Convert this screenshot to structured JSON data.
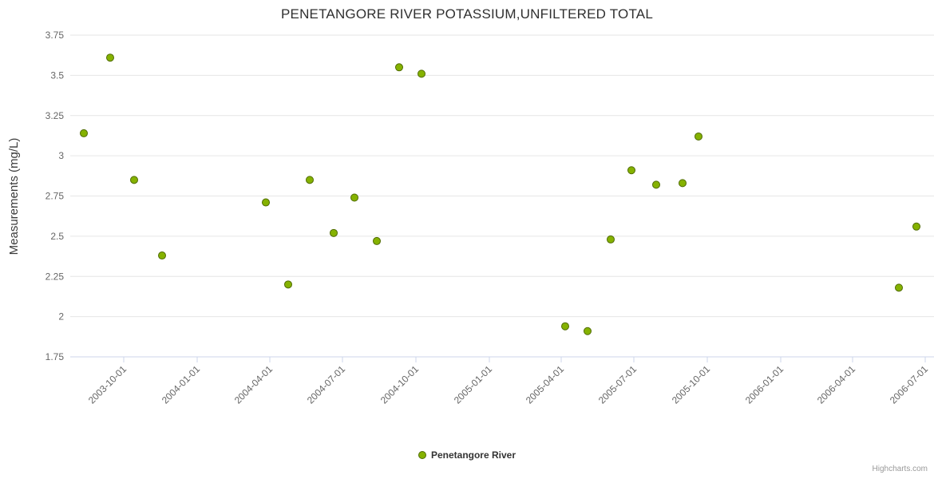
{
  "title": "PENETANGORE RIVER POTASSIUM,UNFILTERED TOTAL",
  "credits": "Highcharts.com",
  "legend": {
    "items": [
      {
        "label": "Penetangore River",
        "color": "#85b200",
        "border": "#4f6b00"
      }
    ]
  },
  "colors": {
    "grid": "#e6e6e6",
    "axis_line": "#ccd6eb",
    "tick": "#ccd6eb",
    "axis_label": "#666666",
    "title": "#303030",
    "point_fill": "#85b200",
    "point_stroke": "#4f6b00"
  },
  "chart_data": {
    "type": "scatter",
    "title": "PENETANGORE RIVER POTASSIUM,UNFILTERED TOTAL",
    "xlabel": "",
    "ylabel": "Measurements (mg/L)",
    "ylim": [
      1.75,
      3.75
    ],
    "y_ticks": [
      "1.75",
      "2",
      "2.25",
      "2.5",
      "2.75",
      "3",
      "3.25",
      "3.5",
      "3.75"
    ],
    "x_ticks": [
      "2003-10-01",
      "2004-01-01",
      "2004-04-01",
      "2004-07-01",
      "2004-10-01",
      "2005-01-01",
      "2005-04-01",
      "2005-07-01",
      "2005-10-01",
      "2006-01-01",
      "2006-04-01",
      "2006-07-01"
    ],
    "x_range": [
      "2003-07-26",
      "2006-07-12"
    ],
    "grid": "horizontal",
    "legend_position": "bottom-center",
    "series": [
      {
        "name": "Penetangore River",
        "color": "#85b200",
        "marker_stroke": "#4f6b00",
        "points": [
          {
            "x": "2003-08-12",
            "y": 3.14
          },
          {
            "x": "2003-09-14",
            "y": 3.61
          },
          {
            "x": "2003-10-14",
            "y": 2.85
          },
          {
            "x": "2003-11-18",
            "y": 2.38
          },
          {
            "x": "2004-03-27",
            "y": 2.71
          },
          {
            "x": "2004-04-24",
            "y": 2.2
          },
          {
            "x": "2004-05-21",
            "y": 2.85
          },
          {
            "x": "2004-06-20",
            "y": 2.52
          },
          {
            "x": "2004-07-16",
            "y": 2.74
          },
          {
            "x": "2004-08-13",
            "y": 2.47
          },
          {
            "x": "2004-09-10",
            "y": 3.55
          },
          {
            "x": "2004-10-08",
            "y": 3.51
          },
          {
            "x": "2005-04-06",
            "y": 1.94
          },
          {
            "x": "2005-05-04",
            "y": 1.91
          },
          {
            "x": "2005-06-02",
            "y": 2.48
          },
          {
            "x": "2005-06-28",
            "y": 2.91
          },
          {
            "x": "2005-07-29",
            "y": 2.82
          },
          {
            "x": "2005-08-31",
            "y": 2.83
          },
          {
            "x": "2005-09-20",
            "y": 3.12
          },
          {
            "x": "2006-05-29",
            "y": 2.18
          },
          {
            "x": "2006-06-20",
            "y": 2.56
          }
        ]
      }
    ]
  }
}
